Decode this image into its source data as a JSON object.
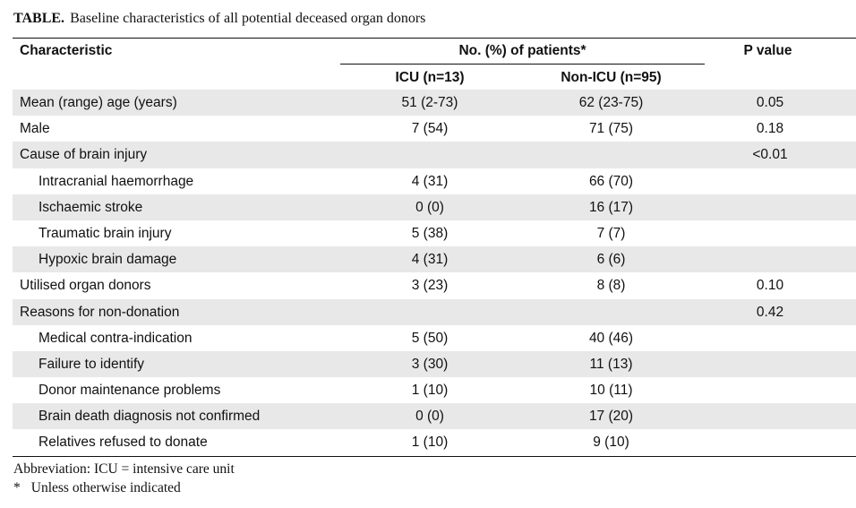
{
  "caption": {
    "lead": "TABLE.",
    "text": "Baseline characteristics of all potential deceased organ donors"
  },
  "header": {
    "characteristic": "Characteristic",
    "group": "No. (%) of patients*",
    "p_value": "P value",
    "icu": "ICU (n=13)",
    "non_icu": "Non-ICU (n=95)"
  },
  "rows": [
    {
      "label": "Mean (range) age (years)",
      "icu": "51 (2-73)",
      "non_icu": "62 (23-75)",
      "p": "0.05"
    },
    {
      "label": "Male",
      "icu": "7 (54)",
      "non_icu": "71 (75)",
      "p": "0.18"
    },
    {
      "label": "Cause of brain injury",
      "icu": "",
      "non_icu": "",
      "p": "<0.01"
    },
    {
      "label": "Intracranial haemorrhage",
      "icu": "4 (31)",
      "non_icu": "66 (70)",
      "p": ""
    },
    {
      "label": "Ischaemic stroke",
      "icu": "0 (0)",
      "non_icu": "16 (17)",
      "p": ""
    },
    {
      "label": "Traumatic brain injury",
      "icu": "5 (38)",
      "non_icu": "7 (7)",
      "p": ""
    },
    {
      "label": "Hypoxic brain damage",
      "icu": "4 (31)",
      "non_icu": "6 (6)",
      "p": ""
    },
    {
      "label": "Utilised organ donors",
      "icu": "3 (23)",
      "non_icu": "8 (8)",
      "p": "0.10"
    },
    {
      "label": "Reasons for non-donation",
      "icu": "",
      "non_icu": "",
      "p": "0.42"
    },
    {
      "label": "Medical contra-indication",
      "icu": "5 (50)",
      "non_icu": "40 (46)",
      "p": ""
    },
    {
      "label": "Failure to identify",
      "icu": "3 (30)",
      "non_icu": "11 (13)",
      "p": ""
    },
    {
      "label": "Donor maintenance problems",
      "icu": "1 (10)",
      "non_icu": "10 (11)",
      "p": ""
    },
    {
      "label": "Brain death diagnosis not confirmed",
      "icu": "0 (0)",
      "non_icu": "17 (20)",
      "p": ""
    },
    {
      "label": "Relatives refused to donate",
      "icu": "1 (10)",
      "non_icu": "9 (10)",
      "p": ""
    }
  ],
  "footnotes": {
    "abbreviation": "Abbreviation: ICU = intensive care unit",
    "star": "*",
    "star_text": "Unless otherwise indicated"
  }
}
